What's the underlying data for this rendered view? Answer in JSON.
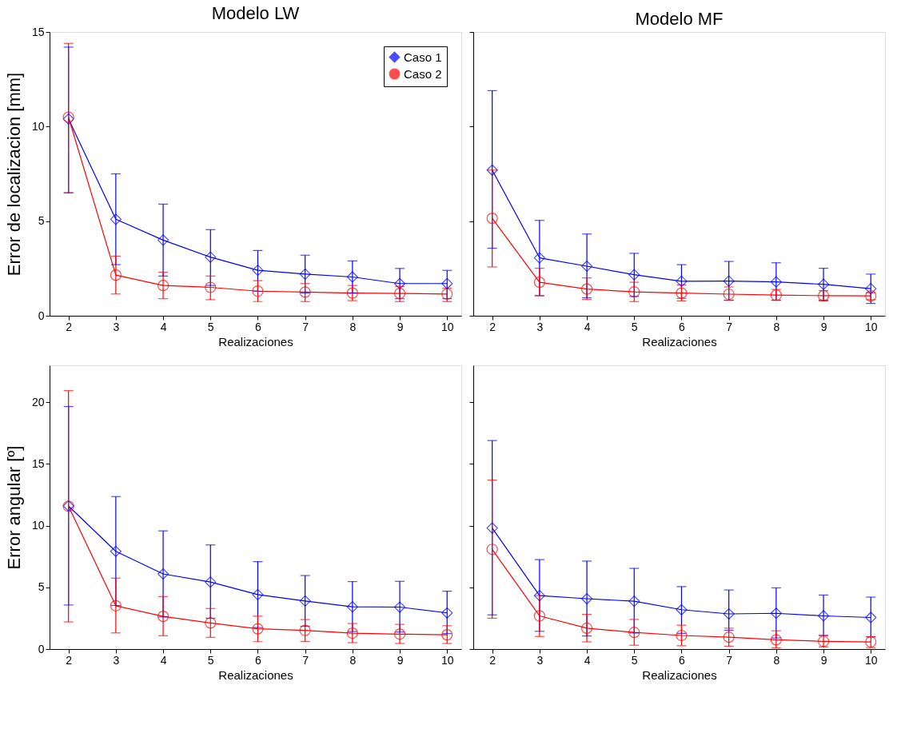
{
  "chart_data": [
    {
      "type": "line",
      "title": "Modelo LW",
      "xlabel": "Realizaciones",
      "ylabel": "Error de localizacion [mm]",
      "x": [
        2,
        3,
        4,
        5,
        6,
        7,
        8,
        9,
        10
      ],
      "xlim": [
        1.6,
        10.3
      ],
      "xticks": [
        2,
        3,
        4,
        5,
        6,
        7,
        8,
        9,
        10
      ],
      "ylim": [
        0,
        15
      ],
      "yticks": [
        0,
        5,
        10,
        15
      ],
      "grid": false,
      "legend": "top right",
      "line_style": "solid",
      "series": [
        {
          "name": "Caso 1",
          "color": "#0000ff",
          "marker": "diamond",
          "values": [
            10.4,
            5.1,
            4.0,
            3.1,
            2.4,
            2.2,
            2.05,
            1.7,
            1.7
          ],
          "errors": [
            [
              6.5,
              14.2
            ],
            [
              2.7,
              7.5
            ],
            [
              2.1,
              5.9
            ],
            [
              1.6,
              4.55
            ],
            [
              1.3,
              3.45
            ],
            [
              1.2,
              3.2
            ],
            [
              1.2,
              2.9
            ],
            [
              0.9,
              2.5
            ],
            [
              0.9,
              2.4
            ]
          ]
        },
        {
          "name": "Caso 2",
          "color": "#ff0000",
          "marker": "circle",
          "values": [
            10.5,
            2.15,
            1.6,
            1.5,
            1.3,
            1.25,
            1.2,
            1.18,
            1.15
          ],
          "errors": [
            [
              6.5,
              14.4
            ],
            [
              1.15,
              3.15
            ],
            [
              0.9,
              2.3
            ],
            [
              0.85,
              2.1
            ],
            [
              0.75,
              1.85
            ],
            [
              0.75,
              1.7
            ],
            [
              0.8,
              1.6
            ],
            [
              0.75,
              1.55
            ],
            [
              0.75,
              1.45
            ]
          ]
        }
      ]
    },
    {
      "type": "line",
      "title": "Modelo MF",
      "xlabel": "Realizaciones",
      "x": [
        2,
        3,
        4,
        5,
        6,
        7,
        8,
        9,
        10
      ],
      "xlim": [
        1.6,
        10.3
      ],
      "xticks": [
        2,
        3,
        4,
        5,
        6,
        7,
        8,
        9,
        10
      ],
      "ylim": [
        0,
        15
      ],
      "yticks": [
        0,
        5,
        10,
        15
      ],
      "grid": false,
      "tick_labels": "x",
      "line_style": "solid",
      "series": [
        {
          "color": "#0000ff",
          "marker": "diamond",
          "values": [
            7.7,
            3.06,
            2.62,
            2.17,
            1.82,
            1.83,
            1.79,
            1.66,
            1.43
          ],
          "errors": [
            [
              3.57,
              11.9
            ],
            [
              1.06,
              5.04
            ],
            [
              0.95,
              4.32
            ],
            [
              1.02,
              3.3
            ],
            [
              0.92,
              2.7
            ],
            [
              0.82,
              2.87
            ],
            [
              0.82,
              2.8
            ],
            [
              0.82,
              2.51
            ],
            [
              0.65,
              2.2
            ]
          ]
        },
        {
          "color": "#ff0000",
          "marker": "circle",
          "values": [
            5.15,
            1.77,
            1.41,
            1.26,
            1.2,
            1.14,
            1.09,
            1.06,
            1.05
          ],
          "errors": [
            [
              2.58,
              7.7
            ],
            [
              1.06,
              2.51
            ],
            [
              0.86,
              2.0
            ],
            [
              0.75,
              1.77
            ],
            [
              0.79,
              1.63
            ],
            [
              0.82,
              1.52
            ],
            [
              0.82,
              1.39
            ],
            [
              0.79,
              1.33
            ],
            [
              0.85,
              1.22
            ]
          ]
        }
      ]
    },
    {
      "type": "line",
      "xlabel": "Realizaciones",
      "ylabel": "Error angular [º]",
      "x": [
        2,
        3,
        4,
        5,
        6,
        7,
        8,
        9,
        10
      ],
      "xlim": [
        1.6,
        10.3
      ],
      "xticks": [
        2,
        3,
        4,
        5,
        6,
        7,
        8,
        9,
        10
      ],
      "ylim": [
        0,
        23
      ],
      "yticks": [
        0,
        5,
        10,
        15,
        20
      ],
      "grid": false,
      "line_style": "solid",
      "series": [
        {
          "color": "#0000ff",
          "marker": "diamond",
          "values": [
            11.6,
            7.92,
            6.09,
            5.43,
            4.41,
            3.9,
            3.42,
            3.4,
            2.93
          ],
          "errors": [
            [
              3.57,
              19.66
            ],
            [
              3.53,
              12.36
            ],
            [
              2.6,
              9.58
            ],
            [
              2.5,
              8.44
            ],
            [
              1.74,
              7.08
            ],
            [
              1.85,
              5.96
            ],
            [
              1.42,
              5.47
            ],
            [
              1.38,
              5.49
            ],
            [
              1.25,
              4.69
            ]
          ]
        },
        {
          "color": "#ff0000",
          "marker": "circle",
          "values": [
            11.58,
            3.51,
            2.65,
            2.11,
            1.64,
            1.51,
            1.29,
            1.21,
            1.16
          ],
          "errors": [
            [
              2.2,
              20.95
            ],
            [
              1.31,
              5.75
            ],
            [
              1.08,
              4.26
            ],
            [
              0.95,
              3.29
            ],
            [
              0.6,
              2.67
            ],
            [
              0.62,
              2.39
            ],
            [
              0.52,
              2.07
            ],
            [
              0.45,
              2.0
            ],
            [
              0.45,
              1.89
            ]
          ]
        }
      ]
    },
    {
      "type": "line",
      "xlabel": "Realizaciones",
      "x": [
        2,
        3,
        4,
        5,
        6,
        7,
        8,
        9,
        10
      ],
      "xlim": [
        1.6,
        10.3
      ],
      "xticks": [
        2,
        3,
        4,
        5,
        6,
        7,
        8,
        9,
        10
      ],
      "ylim": [
        0,
        23
      ],
      "yticks": [
        0,
        5,
        10,
        15,
        20
      ],
      "grid": false,
      "tick_labels": "x",
      "line_style": "solid",
      "series": [
        {
          "color": "#0000ff",
          "marker": "diamond",
          "values": [
            9.81,
            4.33,
            4.08,
            3.88,
            3.19,
            2.85,
            2.9,
            2.69,
            2.56
          ],
          "errors": [
            [
              2.77,
              16.9
            ],
            [
              1.44,
              7.25
            ],
            [
              1.06,
              7.13
            ],
            [
              1.3,
              6.54
            ],
            [
              1.27,
              5.06
            ],
            [
              1.52,
              4.79
            ],
            [
              0.9,
              4.96
            ],
            [
              1.1,
              4.38
            ],
            [
              1.0,
              4.21
            ]
          ]
        },
        {
          "color": "#ff0000",
          "marker": "circle",
          "values": [
            8.08,
            2.69,
            1.69,
            1.35,
            1.1,
            0.96,
            0.75,
            0.63,
            0.58
          ],
          "errors": [
            [
              2.5,
              13.7
            ],
            [
              1.02,
              4.33
            ],
            [
              0.58,
              2.81
            ],
            [
              0.31,
              2.4
            ],
            [
              0.27,
              1.94
            ],
            [
              0.23,
              1.69
            ],
            [
              0.1,
              1.48
            ],
            [
              0.17,
              1.1
            ],
            [
              0.12,
              1.0
            ]
          ]
        }
      ]
    }
  ]
}
